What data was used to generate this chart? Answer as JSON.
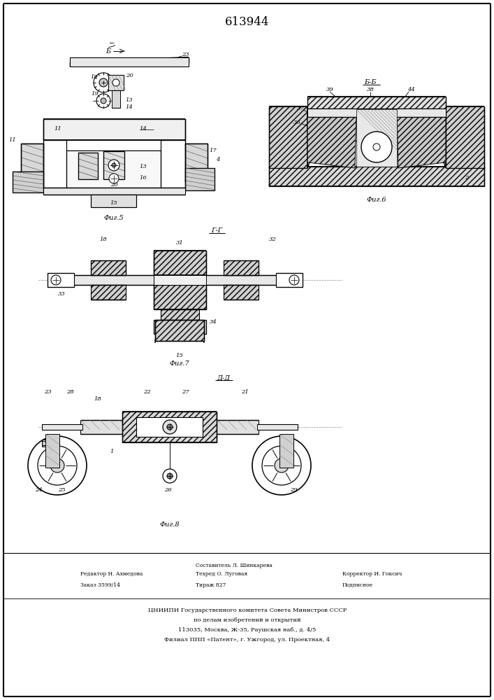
{
  "title": "613944",
  "background_color": "#ffffff",
  "fig1_label": "Фиг.5",
  "fig2_label": "Фиг.6",
  "fig3_label": "Фиг.7",
  "fig4_label": "Фиг.8",
  "section_label_B": "Б-Б",
  "section_label_G": "Г-Г",
  "section_label_D": "Д-Д",
  "footer_col1_line1": "Редактор Н. Ахмедова",
  "footer_col1_line2": "Заказ 3599/14",
  "footer_col2_line1": "Составитель Л. Шинкарева",
  "footer_col2_line2": "Техред О. Луговая",
  "footer_col2_line3": "Тираж 827",
  "footer_col3_line1": "Корректор И. Гоксич",
  "footer_col3_line2": "Подписное",
  "footer_org1": "ЦНИИПИ Государственного комитета Совета Министров СССР",
  "footer_org2": "по делам изобретений и открытий",
  "footer_org3": "113035, Москва, Ж-35, Раушская наб., д. 4/5",
  "footer_org4": "Филиал ППП «Патент», г. Ужгород, ул. Проектная, 4"
}
